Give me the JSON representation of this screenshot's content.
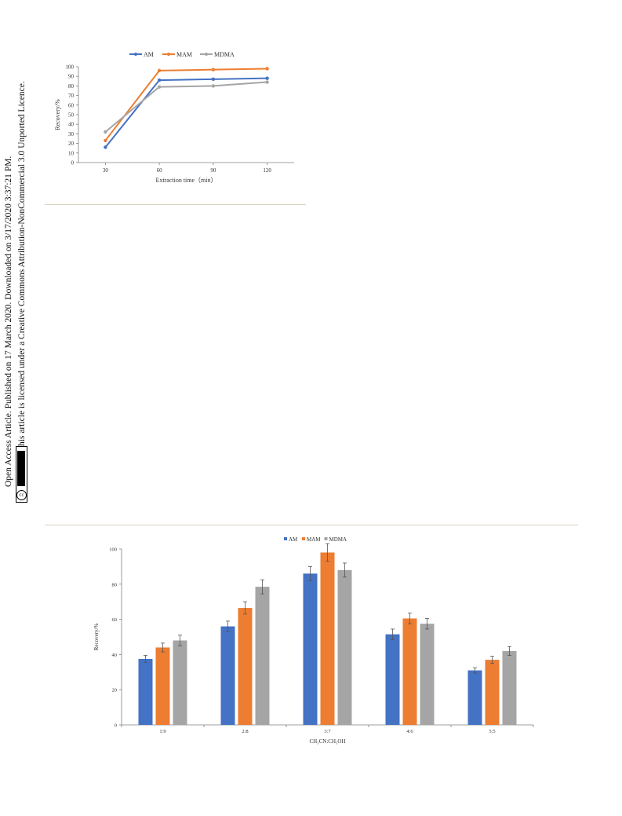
{
  "banner": {
    "line1": "Open Access Article. Published on 17 March 2020. Downloaded on 3/17/2020 3:37:21 PM.",
    "line2": "This article is licensed under a Creative Commons Attribution-NonCommercial 3.0 Unported Licence.",
    "badge_cc": "cc",
    "badge_by": "BY-NC"
  },
  "colors": {
    "AM": "#4472c4",
    "MAM": "#ed7d31",
    "MDMA": "#a5a5a5",
    "axis": "#808080",
    "divider": "#d9d4bb"
  },
  "chart_data": [
    {
      "type": "line",
      "title": "",
      "xlabel": "Extraction time（min）",
      "ylabel": "Recovery/%",
      "x": [
        30,
        60,
        90,
        120
      ],
      "xlim": [
        15,
        135
      ],
      "ylim": [
        0,
        100
      ],
      "yticks": [
        0,
        10,
        20,
        30,
        40,
        50,
        60,
        70,
        80,
        90,
        100
      ],
      "legend": "top",
      "series": [
        {
          "name": "AM",
          "values": [
            16,
            86,
            87,
            88
          ]
        },
        {
          "name": "MAM",
          "values": [
            23,
            96,
            97,
            98
          ]
        },
        {
          "name": "MDMA",
          "values": [
            32,
            79,
            80,
            84
          ]
        }
      ]
    },
    {
      "type": "bar",
      "title": "",
      "xlabel": "CH₃CN:CH₃OH",
      "ylabel": "Recovery/%",
      "categories": [
        "1:9",
        "2:8",
        "3:7",
        "4:6",
        "5:5"
      ],
      "ylim": [
        0,
        100
      ],
      "yticks": [
        0,
        20,
        40,
        60,
        80,
        100
      ],
      "legend": "top",
      "series": [
        {
          "name": "AM",
          "values": [
            37.5,
            56,
            86,
            51.5,
            31
          ],
          "errors": [
            2,
            3,
            4,
            3,
            1.5
          ]
        },
        {
          "name": "MAM",
          "values": [
            44,
            66.5,
            98,
            60.5,
            37
          ],
          "errors": [
            2.5,
            3.5,
            5,
            3,
            2
          ]
        },
        {
          "name": "MDMA",
          "values": [
            48,
            78.5,
            88,
            57.5,
            42
          ],
          "errors": [
            3,
            4,
            4,
            3,
            2.5
          ]
        }
      ]
    }
  ]
}
